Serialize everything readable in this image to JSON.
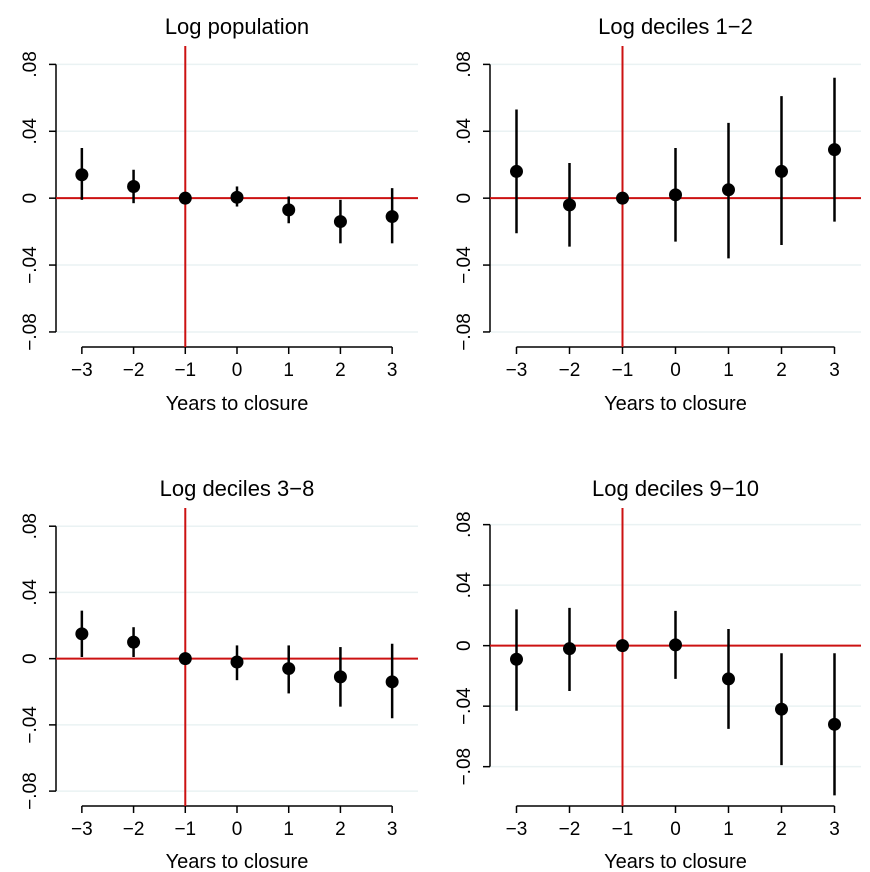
{
  "colors": {
    "background": "#ffffff",
    "gridline": "#eaf2f3",
    "reference": "#cc1111",
    "marker": "#000000",
    "axis": "#000000"
  },
  "chart_data": [
    {
      "type": "scatter",
      "title": "Log population",
      "xlabel": "Years to closure",
      "ylabel": "",
      "x": [
        -3,
        -2,
        -1,
        0,
        1,
        2,
        3
      ],
      "x_tick_labels": [
        "−3",
        "−2",
        "−1",
        "0",
        "1",
        "2",
        "3"
      ],
      "values": [
        0.014,
        0.007,
        0.0,
        0.0005,
        -0.007,
        -0.014,
        -0.011
      ],
      "ci_low": [
        -0.001,
        -0.003,
        0.0,
        -0.005,
        -0.015,
        -0.027,
        -0.027
      ],
      "ci_high": [
        0.03,
        0.017,
        0.0,
        0.007,
        0.001,
        -0.001,
        0.006
      ],
      "yticks": [
        0.08,
        0.04,
        0,
        -0.04,
        -0.08
      ],
      "ytick_labels": [
        ".08",
        ".04",
        "0",
        "−.04",
        "−.08"
      ],
      "ylim": [
        -0.089,
        0.091
      ],
      "xlim": [
        -3.5,
        3.5
      ],
      "grid": true,
      "reference_lines": {
        "x": -1,
        "y": 0
      }
    },
    {
      "type": "scatter",
      "title": "Log deciles 1−2",
      "xlabel": "Years to closure",
      "ylabel": "",
      "x": [
        -3,
        -2,
        -1,
        0,
        1,
        2,
        3
      ],
      "x_tick_labels": [
        "−3",
        "−2",
        "−1",
        "0",
        "1",
        "2",
        "3"
      ],
      "values": [
        0.016,
        -0.004,
        0.0,
        0.002,
        0.005,
        0.016,
        0.029
      ],
      "ci_low": [
        -0.021,
        -0.029,
        0.0,
        -0.026,
        -0.036,
        -0.028,
        -0.014
      ],
      "ci_high": [
        0.053,
        0.021,
        0.0,
        0.03,
        0.045,
        0.061,
        0.072
      ],
      "yticks": [
        0.08,
        0.04,
        0,
        -0.04,
        -0.08
      ],
      "ytick_labels": [
        ".08",
        ".04",
        "0",
        "−.04",
        "−.08"
      ],
      "ylim": [
        -0.089,
        0.091
      ],
      "xlim": [
        -3.5,
        3.5
      ],
      "grid": true,
      "reference_lines": {
        "x": -1,
        "y": 0
      }
    },
    {
      "type": "scatter",
      "title": "Log deciles 3−8",
      "xlabel": "Years to closure",
      "ylabel": "",
      "x": [
        -3,
        -2,
        -1,
        0,
        1,
        2,
        3
      ],
      "x_tick_labels": [
        "−3",
        "−2",
        "−1",
        "0",
        "1",
        "2",
        "3"
      ],
      "values": [
        0.015,
        0.01,
        0.0,
        -0.002,
        -0.006,
        -0.011,
        -0.014
      ],
      "ci_low": [
        0.001,
        0.001,
        0.0,
        -0.013,
        -0.021,
        -0.029,
        -0.036
      ],
      "ci_high": [
        0.029,
        0.019,
        0.0,
        0.008,
        0.008,
        0.007,
        0.009
      ],
      "yticks": [
        0.08,
        0.04,
        0,
        -0.04,
        -0.08
      ],
      "ytick_labels": [
        ".08",
        ".04",
        "0",
        "−.04",
        "−.08"
      ],
      "ylim": [
        -0.089,
        0.091
      ],
      "xlim": [
        -3.5,
        3.5
      ],
      "grid": true,
      "reference_lines": {
        "x": -1,
        "y": 0
      }
    },
    {
      "type": "scatter",
      "title": "Log deciles 9−10",
      "xlabel": "Years to closure",
      "ylabel": "",
      "x": [
        -3,
        -2,
        -1,
        0,
        1,
        2,
        3
      ],
      "x_tick_labels": [
        "−3",
        "−2",
        "−1",
        "0",
        "1",
        "2",
        "3"
      ],
      "values": [
        -0.009,
        -0.002,
        0.0,
        0.0005,
        -0.022,
        -0.042,
        -0.052
      ],
      "ci_low": [
        -0.043,
        -0.03,
        0.0,
        -0.022,
        -0.055,
        -0.079,
        -0.099
      ],
      "ci_high": [
        0.024,
        0.025,
        0.0,
        0.023,
        0.011,
        -0.005,
        -0.005
      ],
      "yticks": [
        0.08,
        0.04,
        0,
        -0.04,
        -0.08
      ],
      "ytick_labels": [
        ".08",
        ".04",
        "0",
        "−.04",
        "−.08"
      ],
      "ylim": [
        -0.106,
        0.091
      ],
      "xlim": [
        -3.5,
        3.5
      ],
      "grid": true,
      "reference_lines": {
        "x": -1,
        "y": 0
      }
    }
  ]
}
